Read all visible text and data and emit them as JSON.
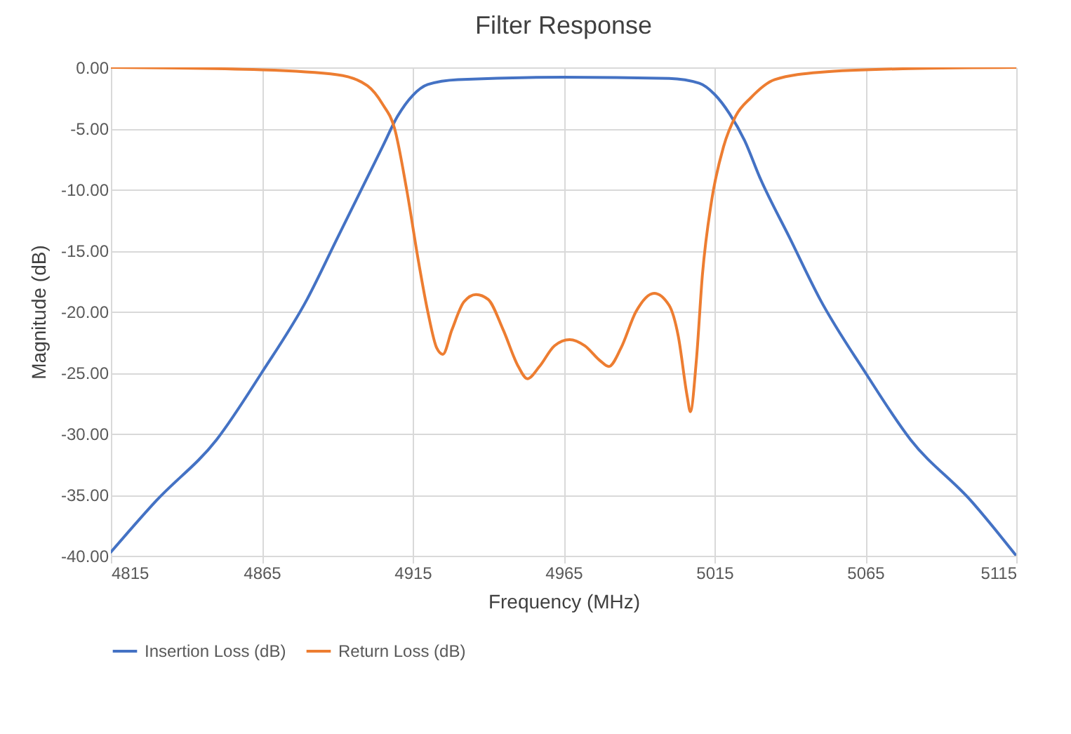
{
  "chart_data": {
    "type": "line",
    "title": "Filter Response",
    "xlabel": "Frequency (MHz)",
    "ylabel": "Magnitude (dB)",
    "xlim": [
      4815,
      5115
    ],
    "xticks": [
      4815,
      4865,
      4915,
      4965,
      5015,
      5065,
      5115
    ],
    "ylim": [
      -40,
      0
    ],
    "yticks": [
      {
        "value": 0,
        "label": "0.00"
      },
      {
        "value": -5,
        "label": "-5.00"
      },
      {
        "value": -10,
        "label": "-10.00"
      },
      {
        "value": -15,
        "label": "-15.00"
      },
      {
        "value": -20,
        "label": "-20.00"
      },
      {
        "value": -25,
        "label": "-25.00"
      },
      {
        "value": -30,
        "label": "-30.00"
      },
      {
        "value": -35,
        "label": "-35.00"
      },
      {
        "value": -40,
        "label": "-40.00"
      }
    ],
    "grid": true,
    "legend": "bottom",
    "marker": "none",
    "line_style": "solid",
    "series": [
      {
        "name": "Insertion Loss (dB)",
        "color": "#4472c4",
        "x": [
          4815,
          4830,
          4850,
          4865,
          4880,
          4890,
          4900,
          4905,
          4910,
          4915,
          4920,
          4930,
          4965,
          5000,
          5010,
          5015,
          5020,
          5025,
          5030,
          5040,
          5050,
          5065,
          5080,
          5100,
          5115
        ],
        "values": [
          -39.7,
          -35.5,
          -30.5,
          -25,
          -19,
          -14,
          -9,
          -6.5,
          -4,
          -2.3,
          -1.4,
          -1,
          -0.8,
          -0.9,
          -1.3,
          -2.2,
          -3.8,
          -6,
          -9,
          -14,
          -19,
          -25,
          -30.5,
          -35.5,
          -40
        ]
      },
      {
        "name": "Return Loss (dB)",
        "color": "#ed7d31",
        "x": [
          4815,
          4865,
          4890,
          4900,
          4905,
          4909,
          4913,
          4917,
          4920,
          4923,
          4925,
          4928,
          4932,
          4936,
          4940,
          4945,
          4950,
          4953,
          4957,
          4962,
          4967,
          4972,
          4977,
          4980,
          4984,
          4989,
          4995,
          5000,
          5003,
          5006,
          5007,
          5009,
          5011,
          5014,
          5018,
          5022,
          5027,
          5035,
          5050,
          5080,
          5115
        ],
        "values": [
          0,
          -0.2,
          -0.6,
          -1.5,
          -3,
          -5,
          -10,
          -16,
          -20,
          -23,
          -23.5,
          -21.5,
          -19.2,
          -18.6,
          -19,
          -21.5,
          -24.5,
          -25.5,
          -24.5,
          -22.8,
          -22.3,
          -22.8,
          -24,
          -24.5,
          -23,
          -20,
          -18.5,
          -19.5,
          -22,
          -27,
          -28.2,
          -24,
          -17,
          -11,
          -6.5,
          -4,
          -2.5,
          -1,
          -0.4,
          -0.1,
          0
        ]
      }
    ]
  }
}
